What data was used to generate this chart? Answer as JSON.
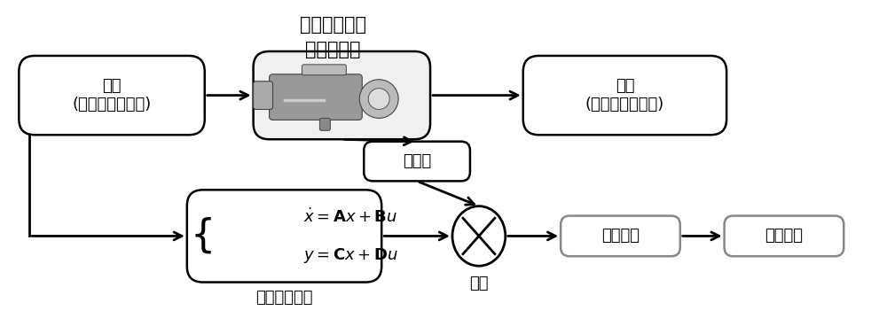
{
  "title_line1": "风力发电机润",
  "title_line2": "滑冷却系统",
  "box_input_line1": "输入",
  "box_input_line2": "(控制量，环境量)",
  "box_output_line1": "输出",
  "box_output_line2": "(状态量，输出量)",
  "box_sensor": "传感器",
  "box_model_label": "机载实时模型",
  "circle_label": "残差",
  "box_analysis": "残差分析",
  "box_diagnosis": "故障诊断",
  "bg_color": "#ffffff",
  "box_bg": "#ffffff",
  "box_edge": "#000000",
  "box_edge_gray": "#888888",
  "arrow_color": "#000000",
  "text_color": "#000000",
  "font_size_title": 15,
  "font_size_box": 13,
  "font_size_eq": 13
}
